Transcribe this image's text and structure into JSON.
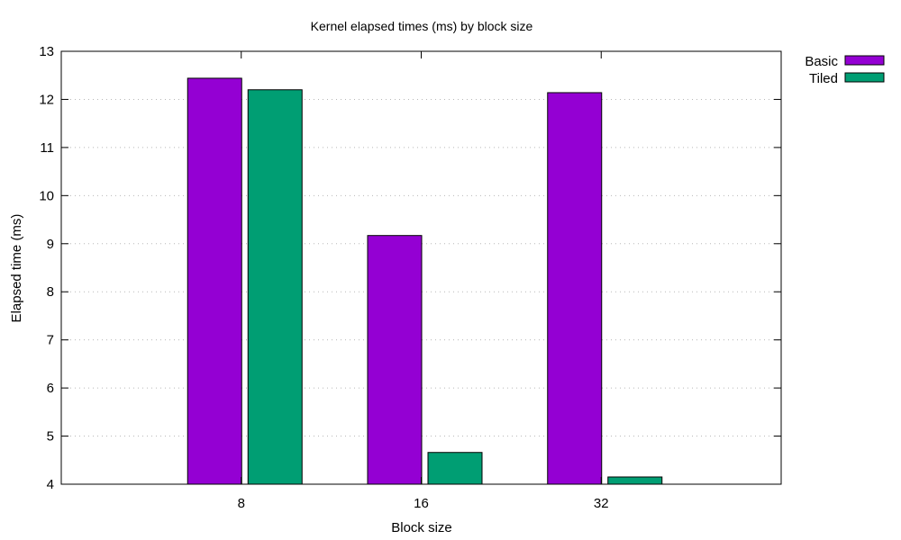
{
  "chart_data": {
    "type": "bar",
    "title": "Kernel elapsed times (ms) by block size",
    "xlabel": "Block size",
    "ylabel": "Elapsed time (ms)",
    "categories": [
      "8",
      "16",
      "32"
    ],
    "series": [
      {
        "name": "Basic",
        "values": [
          12.44,
          9.17,
          12.14
        ],
        "color": "#9400d3"
      },
      {
        "name": "Tiled",
        "values": [
          12.2,
          4.66,
          4.15
        ],
        "color": "#009e73"
      }
    ],
    "ylim": [
      4,
      13
    ],
    "yticks": [
      4,
      5,
      6,
      7,
      8,
      9,
      10,
      11,
      12,
      13
    ],
    "grid": "y-dotted",
    "legend": "outside-top-right"
  }
}
